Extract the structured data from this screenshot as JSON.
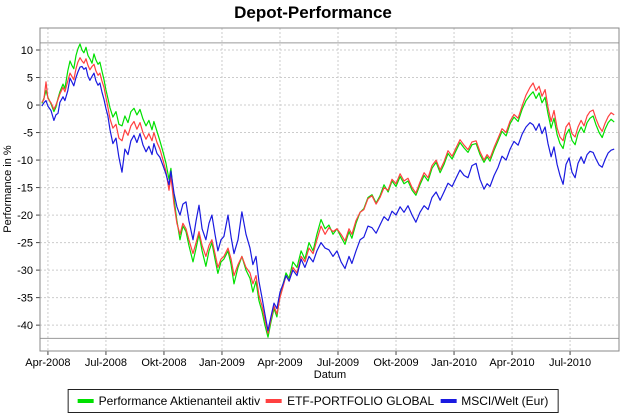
{
  "title": "Depot-Performance",
  "colors": {
    "background": "#ffffff",
    "plot_border": "#888888",
    "grid": "#cccccc",
    "bound_line": "#9a9a9a",
    "tick_text": "#000000"
  },
  "chart_data": {
    "type": "line",
    "title": "Depot-Performance",
    "xlabel": "Datum",
    "ylabel": "Performance in %",
    "legend_position": "bottom",
    "grid": "dashed",
    "x_unit": "months since Apr-2008",
    "xlim": [
      -0.41,
      29.53
    ],
    "ylim": [
      -44.7,
      14.0
    ],
    "y_ticks": [
      10,
      5,
      0,
      -5,
      -10,
      -15,
      -20,
      -25,
      -30,
      -35,
      -40
    ],
    "x_ticks": [
      {
        "m": 0,
        "label": "Apr-2008"
      },
      {
        "m": 3,
        "label": "Jul-2008"
      },
      {
        "m": 6,
        "label": "Okt-2008"
      },
      {
        "m": 9,
        "label": "Jan-2009"
      },
      {
        "m": 12,
        "label": "Apr-2009"
      },
      {
        "m": 15,
        "label": "Jul-2009"
      },
      {
        "m": 18,
        "label": "Okt-2009"
      },
      {
        "m": 21,
        "label": "Jan-2010"
      },
      {
        "m": 24,
        "label": "Apr-2010"
      },
      {
        "m": 27,
        "label": "Jul-2010"
      }
    ],
    "bound_lines": [
      11.3,
      -42.4
    ],
    "x": [
      -0.31,
      -0.21,
      -0.1,
      0.0,
      0.16,
      0.31,
      0.41,
      0.52,
      0.62,
      0.78,
      0.88,
      1.03,
      1.14,
      1.24,
      1.34,
      1.45,
      1.55,
      1.66,
      1.76,
      1.86,
      1.97,
      2.07,
      2.17,
      2.28,
      2.38,
      2.48,
      2.59,
      2.69,
      2.79,
      2.9,
      3.0,
      3.1,
      3.21,
      3.36,
      3.52,
      3.67,
      3.83,
      3.98,
      4.14,
      4.29,
      4.45,
      4.6,
      4.76,
      4.91,
      5.07,
      5.22,
      5.38,
      5.48,
      5.64,
      5.79,
      5.95,
      6.1,
      6.26,
      6.36,
      6.52,
      6.67,
      6.83,
      6.98,
      7.14,
      7.29,
      7.5,
      7.66,
      7.81,
      7.97,
      8.17,
      8.33,
      8.48,
      8.64,
      8.79,
      8.95,
      9.1,
      9.31,
      9.47,
      9.62,
      9.83,
      10.03,
      10.24,
      10.45,
      10.6,
      10.76,
      10.91,
      11.07,
      11.22,
      11.38,
      11.53,
      11.69,
      11.84,
      12.0,
      12.16,
      12.31,
      12.47,
      12.67,
      12.88,
      13.09,
      13.29,
      13.5,
      13.71,
      13.91,
      14.12,
      14.33,
      14.53,
      14.74,
      14.95,
      15.16,
      15.36,
      15.57,
      15.72,
      15.93,
      16.14,
      16.34,
      16.55,
      16.76,
      16.97,
      17.17,
      17.38,
      17.59,
      17.79,
      18.0,
      18.21,
      18.41,
      18.62,
      18.83,
      19.03,
      19.24,
      19.45,
      19.66,
      19.86,
      20.07,
      20.28,
      20.48,
      20.69,
      20.9,
      21.1,
      21.31,
      21.52,
      21.72,
      21.93,
      22.14,
      22.34,
      22.55,
      22.71,
      22.86,
      23.07,
      23.28,
      23.48,
      23.69,
      23.9,
      24.1,
      24.31,
      24.52,
      24.72,
      24.93,
      25.09,
      25.24,
      25.4,
      25.55,
      25.71,
      25.86,
      26.02,
      26.17,
      26.33,
      26.48,
      26.64,
      26.79,
      26.95,
      27.1,
      27.26,
      27.41,
      27.57,
      27.72,
      27.88,
      28.03,
      28.19,
      28.34,
      28.5,
      28.66,
      28.81,
      28.97,
      29.12,
      29.28
    ],
    "series": [
      {
        "name": "Performance Aktienanteil aktiv",
        "color": "#00e000",
        "values": [
          0.3,
          1.2,
          2.6,
          1.4,
          0.2,
          -1.2,
          -0.4,
          1.2,
          2.4,
          3.8,
          3.0,
          6.2,
          8.0,
          7.2,
          6.6,
          9.0,
          10.2,
          11.1,
          10.0,
          9.5,
          10.5,
          9.0,
          8.4,
          7.6,
          9.3,
          8.2,
          7.4,
          7.8,
          6.2,
          4.6,
          2.8,
          1.2,
          -0.5,
          -2.2,
          -1.2,
          -3.5,
          -3.8,
          -2.0,
          -3.2,
          -1.2,
          -0.6,
          -1.8,
          -0.8,
          -2.5,
          -3.8,
          -2.8,
          -4.5,
          -3.0,
          -4.8,
          -6.5,
          -8.5,
          -10.5,
          -13.5,
          -11.5,
          -17.0,
          -21.0,
          -24.5,
          -22.0,
          -23.0,
          -25.5,
          -28.5,
          -26.0,
          -23.5,
          -26.5,
          -29.3,
          -26.5,
          -25.0,
          -28.0,
          -30.6,
          -28.5,
          -28.0,
          -26.5,
          -29.0,
          -32.5,
          -29.5,
          -27.5,
          -30.0,
          -31.5,
          -34.0,
          -32.0,
          -35.5,
          -37.5,
          -40.0,
          -42.2,
          -39.5,
          -37.0,
          -38.5,
          -34.5,
          -32.5,
          -30.5,
          -31.5,
          -28.5,
          -29.5,
          -26.5,
          -28.0,
          -25.0,
          -26.5,
          -23.5,
          -20.8,
          -22.5,
          -21.8,
          -23.5,
          -22.5,
          -24.0,
          -25.3,
          -23.0,
          -24.2,
          -21.5,
          -19.5,
          -18.8,
          -16.8,
          -16.3,
          -17.8,
          -16.5,
          -14.5,
          -15.8,
          -13.8,
          -14.8,
          -13.0,
          -14.3,
          -13.8,
          -15.5,
          -16.4,
          -14.5,
          -12.8,
          -13.8,
          -11.5,
          -10.4,
          -12.3,
          -10.8,
          -8.8,
          -9.8,
          -8.3,
          -6.8,
          -7.8,
          -8.6,
          -7.2,
          -7.0,
          -9.0,
          -10.4,
          -9.4,
          -10.2,
          -8.2,
          -6.5,
          -4.8,
          -5.6,
          -3.4,
          -2.2,
          -3.0,
          -0.8,
          0.8,
          1.8,
          2.4,
          1.2,
          2.2,
          0.4,
          1.4,
          -1.6,
          -4.2,
          -2.4,
          -5.4,
          -7.0,
          -7.9,
          -5.4,
          -4.4,
          -6.4,
          -7.2,
          -5.2,
          -4.0,
          -5.0,
          -3.2,
          -2.4,
          -2.0,
          -3.6,
          -5.0,
          -5.9,
          -4.4,
          -3.2,
          -2.6,
          -3.1
        ]
      },
      {
        "name": "ETF-PORTFOLIO GLOBAL",
        "color": "#ff4040",
        "values": [
          0.5,
          1.0,
          4.2,
          1.2,
          0.4,
          -0.8,
          0.0,
          1.0,
          2.0,
          3.2,
          2.4,
          4.4,
          5.8,
          5.2,
          4.6,
          6.6,
          7.8,
          8.6,
          8.0,
          7.6,
          8.4,
          7.2,
          6.4,
          7.0,
          7.4,
          6.2,
          5.4,
          5.8,
          4.4,
          3.2,
          1.4,
          -0.4,
          -2.5,
          -4.2,
          -3.5,
          -6.0,
          -6.5,
          -4.5,
          -5.5,
          -3.8,
          -3.0,
          -4.4,
          -3.2,
          -5.0,
          -6.2,
          -5.2,
          -6.5,
          -5.0,
          -6.8,
          -8.0,
          -10.0,
          -12.0,
          -15.5,
          -13.0,
          -18.0,
          -21.5,
          -23.5,
          -21.5,
          -22.5,
          -24.5,
          -27.0,
          -25.0,
          -23.0,
          -25.5,
          -27.5,
          -25.5,
          -24.5,
          -27.0,
          -29.5,
          -28.0,
          -27.5,
          -26.0,
          -28.0,
          -31.0,
          -29.0,
          -27.5,
          -29.5,
          -30.5,
          -32.5,
          -31.0,
          -34.5,
          -36.5,
          -39.0,
          -41.5,
          -39.0,
          -36.5,
          -38.0,
          -35.0,
          -33.0,
          -31.0,
          -32.0,
          -29.5,
          -30.5,
          -27.5,
          -28.5,
          -26.0,
          -27.0,
          -24.5,
          -22.0,
          -23.5,
          -22.3,
          -23.0,
          -22.5,
          -23.5,
          -24.7,
          -22.5,
          -23.5,
          -21.0,
          -19.5,
          -19.0,
          -17.0,
          -16.5,
          -18.0,
          -16.8,
          -15.0,
          -15.5,
          -13.5,
          -14.3,
          -12.5,
          -13.8,
          -13.3,
          -15.0,
          -16.0,
          -14.0,
          -12.3,
          -13.2,
          -11.0,
          -10.0,
          -11.8,
          -10.3,
          -8.3,
          -9.3,
          -7.8,
          -6.3,
          -7.3,
          -8.1,
          -6.7,
          -6.5,
          -8.5,
          -10.0,
          -9.0,
          -9.7,
          -7.7,
          -6.0,
          -4.3,
          -5.0,
          -2.9,
          -1.7,
          -2.4,
          -0.2,
          1.8,
          3.2,
          4.0,
          2.6,
          3.4,
          1.6,
          2.8,
          -0.4,
          -3.0,
          -1.0,
          -4.2,
          -5.8,
          -6.5,
          -4.0,
          -3.2,
          -5.2,
          -5.8,
          -4.0,
          -2.8,
          -3.8,
          -2.0,
          -1.2,
          -0.9,
          -2.5,
          -3.9,
          -4.8,
          -3.3,
          -2.1,
          -1.4,
          -1.8
        ]
      },
      {
        "name": "MSCI/Welt (Eur)",
        "color": "#1a1ae0",
        "values": [
          -0.2,
          0.4,
          0.8,
          -0.2,
          -1.0,
          -2.8,
          -1.8,
          -1.5,
          0.5,
          1.5,
          0.8,
          2.6,
          4.9,
          4.2,
          3.5,
          5.0,
          6.0,
          6.9,
          7.0,
          6.5,
          6.8,
          5.2,
          4.5,
          5.2,
          5.8,
          4.4,
          3.6,
          4.0,
          2.4,
          1.0,
          -0.6,
          -2.0,
          -4.5,
          -7.0,
          -6.0,
          -9.5,
          -12.2,
          -8.0,
          -9.0,
          -6.5,
          -5.5,
          -6.8,
          -5.2,
          -7.2,
          -8.5,
          -7.5,
          -9.0,
          -7.0,
          -8.8,
          -9.5,
          -11.0,
          -12.5,
          -14.5,
          -12.0,
          -16.0,
          -18.5,
          -20.0,
          -18.0,
          -17.6,
          -21.0,
          -24.5,
          -21.0,
          -18.2,
          -22.5,
          -24.5,
          -21.5,
          -20.0,
          -23.5,
          -26.5,
          -24.5,
          -23.9,
          -20.0,
          -24.0,
          -27.0,
          -24.5,
          -19.4,
          -23.5,
          -26.0,
          -29.0,
          -27.5,
          -32.0,
          -35.0,
          -38.0,
          -41.0,
          -38.5,
          -36.0,
          -37.0,
          -34.0,
          -32.5,
          -31.0,
          -32.0,
          -30.0,
          -31.0,
          -28.0,
          -29.5,
          -27.5,
          -28.5,
          -26.5,
          -25.0,
          -26.0,
          -26.3,
          -27.5,
          -26.5,
          -28.5,
          -29.7,
          -27.5,
          -28.8,
          -26.5,
          -24.5,
          -24.0,
          -22.0,
          -22.3,
          -23.3,
          -21.8,
          -20.3,
          -21.0,
          -19.3,
          -20.0,
          -18.5,
          -19.5,
          -18.3,
          -20.0,
          -21.3,
          -19.5,
          -18.3,
          -19.0,
          -16.8,
          -15.8,
          -17.3,
          -15.8,
          -14.2,
          -14.8,
          -13.3,
          -11.8,
          -12.8,
          -13.2,
          -11.0,
          -10.6,
          -13.5,
          -15.3,
          -14.3,
          -14.8,
          -12.8,
          -11.3,
          -9.3,
          -10.0,
          -8.0,
          -6.6,
          -7.3,
          -5.3,
          -4.0,
          -3.2,
          -3.6,
          -4.6,
          -3.4,
          -5.2,
          -4.0,
          -7.0,
          -9.4,
          -7.6,
          -10.8,
          -12.8,
          -14.4,
          -10.8,
          -9.6,
          -12.2,
          -13.2,
          -10.6,
          -9.4,
          -10.6,
          -9.0,
          -8.4,
          -8.6,
          -9.8,
          -10.9,
          -11.3,
          -9.9,
          -8.7,
          -8.2,
          -8.0
        ]
      }
    ]
  }
}
